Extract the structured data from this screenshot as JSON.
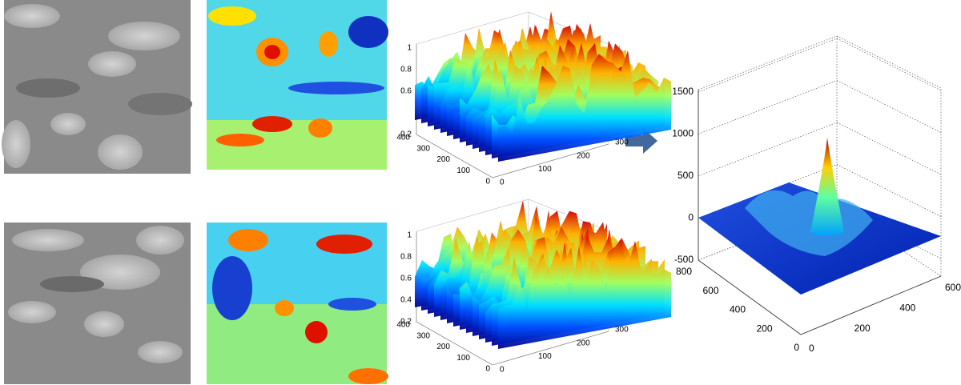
{
  "panels": [
    {
      "z_ticks": [
        0.2,
        0.6,
        0.8,
        1
      ],
      "y_ticks": [
        400,
        300,
        200,
        100,
        0
      ],
      "x_ticks": [
        0,
        100,
        200,
        300
      ]
    },
    {
      "z_ticks": [
        0.2,
        0.4,
        0.6,
        0.8,
        1
      ],
      "y_ticks": [
        400,
        300,
        200,
        100,
        0
      ],
      "x_ticks": [
        0,
        100,
        200,
        300
      ]
    }
  ],
  "result": {
    "z_ticks": [
      1500,
      1000,
      500,
      0,
      -500
    ],
    "y_ticks": [
      800,
      600,
      400,
      200,
      0
    ],
    "x_ticks": [
      0,
      200,
      400,
      600
    ]
  }
}
